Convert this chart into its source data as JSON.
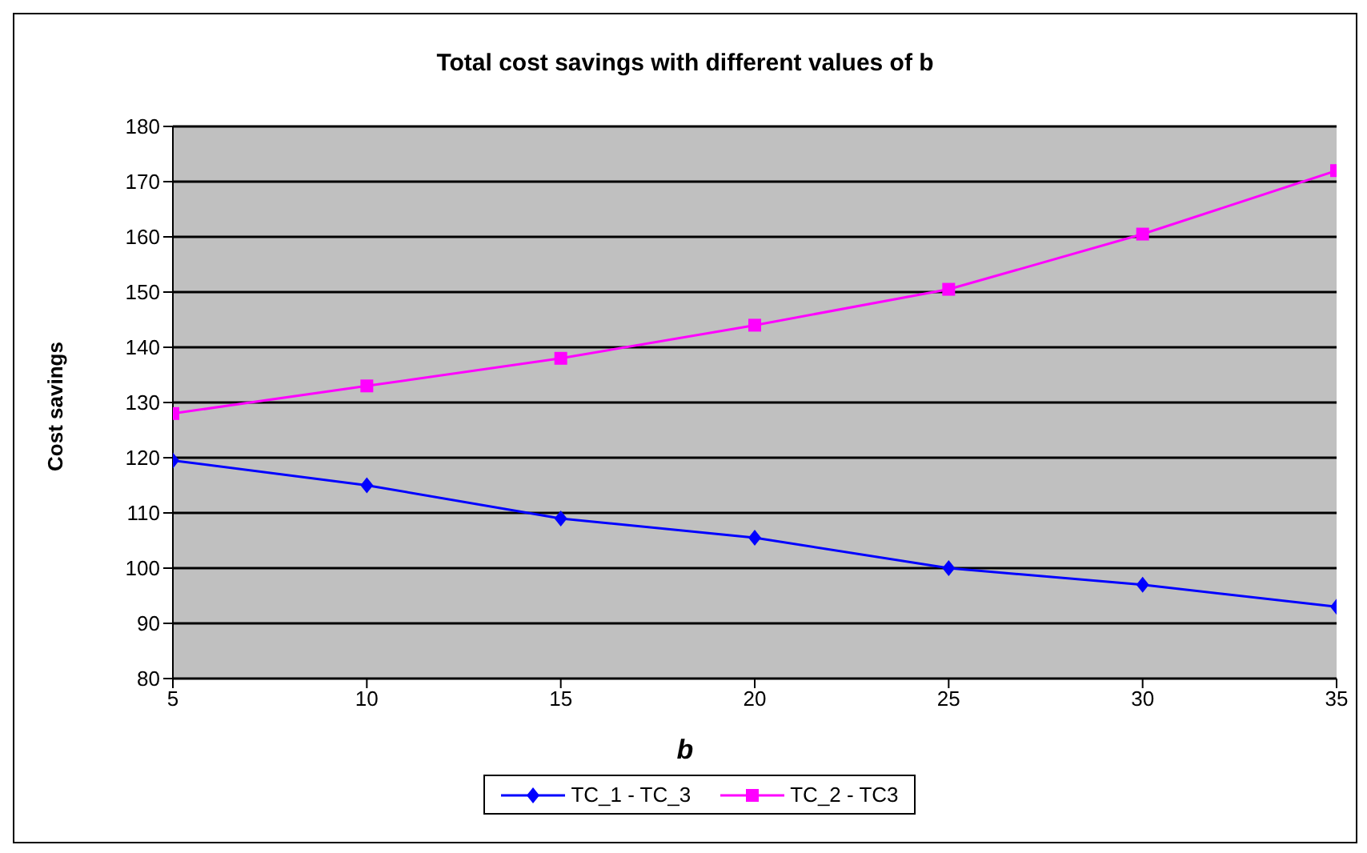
{
  "chart_data": {
    "type": "line",
    "title": "Total cost savings with different values of b",
    "xlabel": "b",
    "ylabel": "Cost savings",
    "x": [
      5,
      10,
      15,
      20,
      25,
      30,
      35
    ],
    "xlim": [
      5,
      35
    ],
    "xticks": [
      5,
      10,
      15,
      20,
      25,
      30,
      35
    ],
    "ylim": [
      80,
      180
    ],
    "yticks": [
      80,
      90,
      100,
      110,
      120,
      130,
      140,
      150,
      160,
      170,
      180
    ],
    "grid": "y",
    "legend": "bottom",
    "series": [
      {
        "name": "TC_1 - TC_3",
        "color": "#0000ff",
        "marker": "diamond",
        "values": [
          119.5,
          115,
          109,
          105.5,
          100,
          97,
          93
        ]
      },
      {
        "name": "TC_2 - TC3",
        "color": "#ff00ff",
        "marker": "square",
        "values": [
          128,
          133,
          138,
          144,
          150.5,
          160.5,
          172
        ]
      }
    ]
  }
}
